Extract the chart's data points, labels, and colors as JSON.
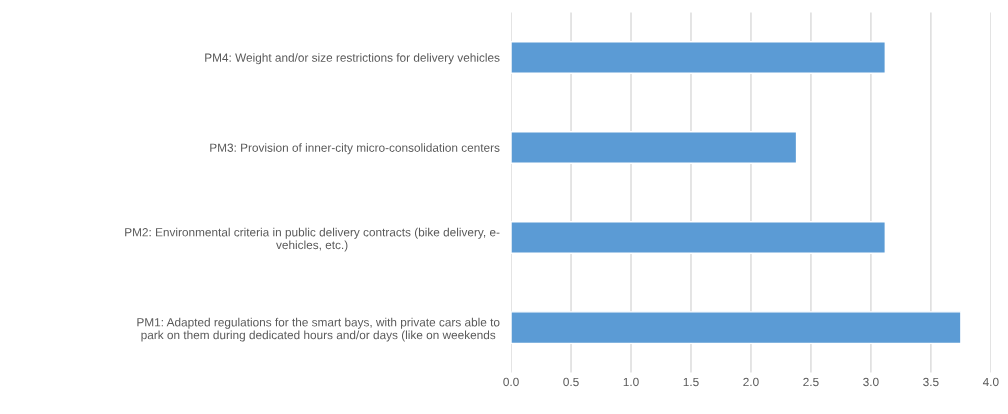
{
  "chart_data": {
    "type": "bar",
    "orientation": "horizontal",
    "categories": [
      "PM4: Weight and/or size restrictions for delivery vehicles",
      "PM3: Provision of inner-city micro-consolidation centers",
      "PM2: Environmental criteria in public delivery contracts (bike delivery, e-\nvehicles, etc.)",
      "PM1: Adapted regulations for the smart bays, with private cars able to\npark on them during dedicated hours and/or days (like on weekends"
    ],
    "values": [
      3.12,
      2.38,
      3.12,
      3.75
    ],
    "color": "#5b9bd5",
    "xlim": [
      0,
      4.0
    ],
    "xticks": [
      {
        "value": 0,
        "label": "0.0"
      },
      {
        "value": 0.5,
        "label": "0.5"
      },
      {
        "value": 1.0,
        "label": "1.0"
      },
      {
        "value": 1.5,
        "label": "1.5"
      },
      {
        "value": 2.0,
        "label": "2.0"
      },
      {
        "value": 2.5,
        "label": "2.5"
      },
      {
        "value": 3.0,
        "label": "3.0"
      },
      {
        "value": 3.5,
        "label": "3.5"
      },
      {
        "value": 4.0,
        "label": "4.0"
      }
    ],
    "grid": "x"
  }
}
